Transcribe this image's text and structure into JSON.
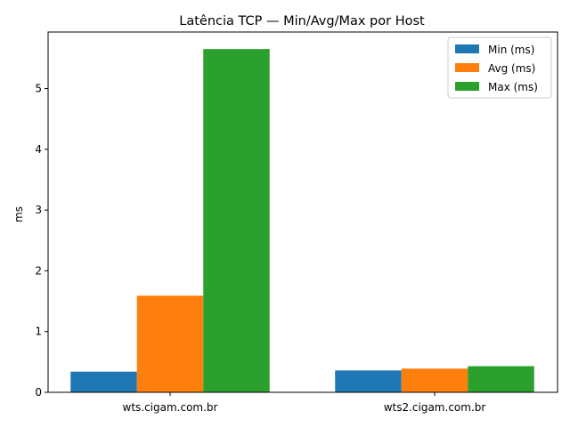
{
  "chart_data": {
    "type": "bar",
    "title": "Latência TCP — Min/Avg/Max por Host",
    "xlabel": "",
    "ylabel": "ms",
    "categories": [
      "wts.cigam.com.br",
      "wts2.cigam.com.br"
    ],
    "series": [
      {
        "name": "Min (ms)",
        "values": [
          0.34,
          0.36
        ],
        "color": "#1f77b4"
      },
      {
        "name": "Avg (ms)",
        "values": [
          1.59,
          0.39
        ],
        "color": "#ff7f0e"
      },
      {
        "name": "Max (ms)",
        "values": [
          5.65,
          0.43
        ],
        "color": "#2ca02c"
      }
    ],
    "ylim": [
      0,
      5.93
    ],
    "yticks": [
      "0",
      "1",
      "2",
      "3",
      "4",
      "5"
    ],
    "legend_position": "top-right",
    "grid": false
  }
}
